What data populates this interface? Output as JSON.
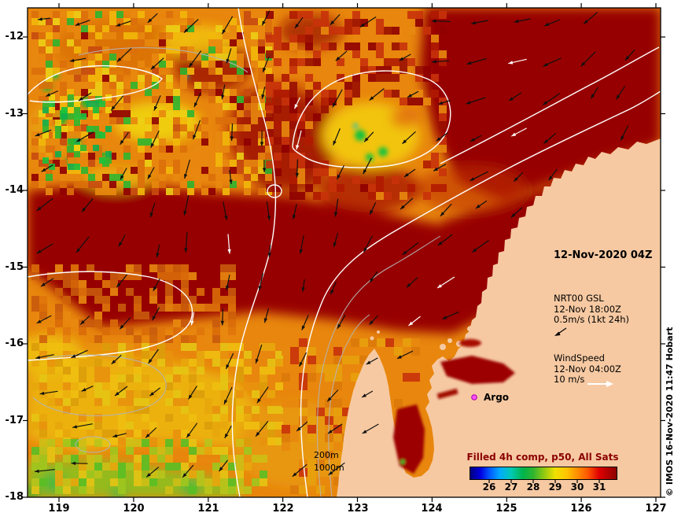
{
  "map": {
    "datetime_label": "12-Nov-2020 04Z",
    "gsl_legend": {
      "title": "NRT00 GSL",
      "datetime": "12-Nov 18:00Z",
      "scale": "0.5m/s (1kt 24h)"
    },
    "wind_legend": {
      "title": "WindSpeed",
      "datetime": "12-Nov 04:00Z",
      "scale": "10 m/s"
    },
    "argo_label": "Argo",
    "depth_labels": [
      "200m",
      "1000m"
    ]
  },
  "axes": {
    "x_ticks": [
      "119",
      "120",
      "121",
      "122",
      "123",
      "124",
      "125",
      "126",
      "127"
    ],
    "y_ticks": [
      "-12",
      "-13",
      "-14",
      "-15",
      "-16",
      "-17",
      "-18"
    ]
  },
  "colorbar": {
    "title": "Filled 4h comp, p50, All Sats",
    "tick_labels": [
      "26",
      "27",
      "28",
      "29",
      "30",
      "31"
    ],
    "title_color": "#8b0000"
  },
  "credit": "© IMOS 16-Nov-2020 11:47 Hobart",
  "palette": {
    "land": "#f6c9a2",
    "sst_warmest": "#970000",
    "sst_base_orange": "#e8860d",
    "sst_cool_yellow": "#f0d40e",
    "sst_cold_green": "#2fb52f",
    "argo_marker": "#ff55ff",
    "colorbar_title": "#8b0000"
  },
  "chart_data": {
    "type": "heatmap",
    "title": "Filled 4h comp, p50, All Sats",
    "datetime": "12-Nov-2020 04Z",
    "x_ticks": [
      119,
      120,
      121,
      122,
      123,
      124,
      125,
      126,
      127
    ],
    "y_ticks": [
      -12,
      -13,
      -14,
      -15,
      -16,
      -17,
      -18
    ],
    "xlim": [
      118.6,
      127.05
    ],
    "ylim": [
      -18,
      -11.75
    ],
    "colorbar_ticks_degC": [
      26,
      27,
      28,
      29,
      30,
      31
    ],
    "overlays": [
      "WindSpeed 12-Nov 04:00Z 10 m/s",
      "NRT00 GSL 12-Nov 18:00Z 0.5m/s (1kt 24h)",
      "Argo",
      "200m",
      "1000m"
    ]
  }
}
